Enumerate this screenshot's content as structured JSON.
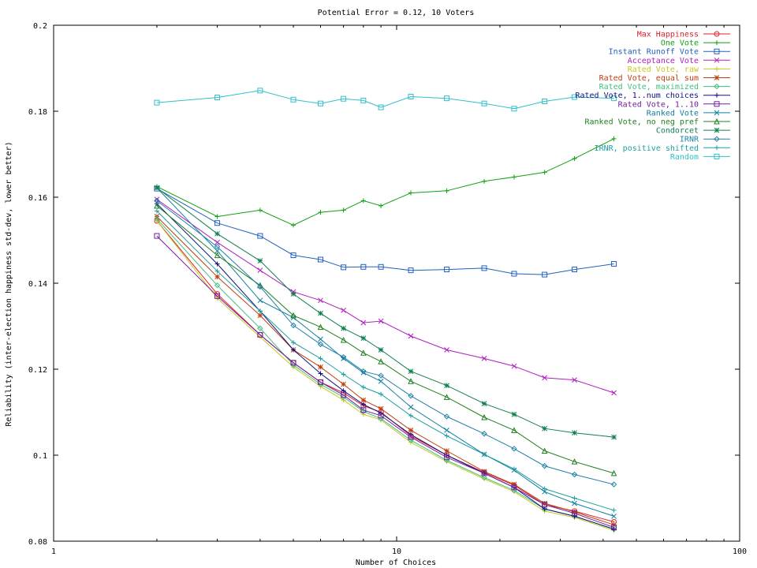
{
  "chart_data": {
    "type": "line",
    "title": "Potential Error = 0.12, 10 Voters",
    "xlabel": "Number of Choices",
    "ylabel": "Reliability (inter-election happiness std-dev, lower better)",
    "xscale": "log",
    "xlim": [
      1,
      100
    ],
    "ylim": [
      0.08,
      0.2
    ],
    "xticks": [
      {
        "value": 1,
        "label": "1"
      },
      {
        "value": 10,
        "label": "10"
      },
      {
        "value": 100,
        "label": "100"
      }
    ],
    "yticks": [
      {
        "value": 0.08,
        "label": "0.08"
      },
      {
        "value": 0.1,
        "label": "0.1"
      },
      {
        "value": 0.12,
        "label": "0.12"
      },
      {
        "value": 0.14,
        "label": "0.14"
      },
      {
        "value": 0.16,
        "label": "0.16"
      },
      {
        "value": 0.18,
        "label": "0.18"
      },
      {
        "value": 0.2,
        "label": "0.2"
      }
    ],
    "grid": false,
    "legend": "top-right",
    "x": [
      2,
      3,
      4,
      5,
      6,
      7,
      8,
      9,
      11,
      14,
      18,
      22,
      27,
      33,
      43
    ],
    "series": [
      {
        "name": "Max Happiness",
        "color": "#e0202a",
        "marker": "circle-dot",
        "values": [
          0.1545,
          0.1375,
          0.128,
          0.1215,
          0.117,
          0.1145,
          0.1115,
          0.11,
          0.1045,
          0.1,
          0.096,
          0.093,
          0.0885,
          0.087,
          0.0845
        ]
      },
      {
        "name": "One Vote",
        "color": "#12a012",
        "marker": "plus",
        "values": [
          0.1625,
          0.1555,
          0.157,
          0.1535,
          0.1565,
          0.157,
          0.1592,
          0.158,
          0.161,
          0.1615,
          0.1637,
          0.1647,
          0.1658,
          0.169,
          0.1736
        ]
      },
      {
        "name": "Instant Runoff Vote",
        "color": "#2060c0",
        "marker": "square",
        "values": [
          0.162,
          0.154,
          0.151,
          0.1465,
          0.1455,
          0.1437,
          0.1438,
          0.1438,
          0.143,
          0.1432,
          0.1435,
          0.1422,
          0.142,
          0.1432,
          0.1445
        ]
      },
      {
        "name": "Acceptance Vote",
        "color": "#b020c0",
        "marker": "x",
        "values": [
          0.1595,
          0.1495,
          0.143,
          0.138,
          0.136,
          0.1337,
          0.1308,
          0.1312,
          0.1277,
          0.1245,
          0.1225,
          0.1207,
          0.118,
          0.1175,
          0.1145
        ]
      },
      {
        "name": "Rated Vote, raw",
        "color": "#c8c820",
        "marker": "plus",
        "values": [
          0.1545,
          0.1365,
          0.1275,
          0.1205,
          0.116,
          0.1128,
          0.1095,
          0.1082,
          0.103,
          0.0985,
          0.0945,
          0.0915,
          0.087,
          0.0855,
          0.0825
        ]
      },
      {
        "name": "Rated Vote, equal sum",
        "color": "#c04010",
        "marker": "star",
        "values": [
          0.1555,
          0.1415,
          0.1325,
          0.1245,
          0.1205,
          0.1165,
          0.1128,
          0.1108,
          0.1058,
          0.101,
          0.0962,
          0.0932,
          0.0888,
          0.0868,
          0.0838
        ]
      },
      {
        "name": "Rated Vote, maximized",
        "color": "#40c080",
        "marker": "diamond",
        "values": [
          0.155,
          0.1395,
          0.1295,
          0.121,
          0.1165,
          0.1135,
          0.1102,
          0.1085,
          0.1035,
          0.0988,
          0.0948,
          0.0918,
          0.0875,
          0.0858,
          0.0828
        ]
      },
      {
        "name": "Rated Vote, 1..num choices",
        "color": "#101080",
        "marker": "plus",
        "values": [
          0.1585,
          0.1445,
          0.1335,
          0.1245,
          0.119,
          0.115,
          0.1118,
          0.1098,
          0.1048,
          0.1,
          0.0958,
          0.0925,
          0.0875,
          0.0858,
          0.0828
        ]
      },
      {
        "name": "Rated Vote, 1..10",
        "color": "#7020a0",
        "marker": "square",
        "values": [
          0.151,
          0.137,
          0.128,
          0.1215,
          0.117,
          0.114,
          0.1105,
          0.1092,
          0.1042,
          0.0995,
          0.0958,
          0.0925,
          0.0885,
          0.0865,
          0.0832
        ]
      },
      {
        "name": "Ranked Vote",
        "color": "#1080a0",
        "marker": "x",
        "values": [
          0.1622,
          0.1475,
          0.136,
          0.132,
          0.127,
          0.1225,
          0.1192,
          0.1172,
          0.1112,
          0.1058,
          0.1002,
          0.0965,
          0.0915,
          0.0888,
          0.0858
        ]
      },
      {
        "name": "Ranked Vote, no neg pref",
        "color": "#208020",
        "marker": "triangle",
        "values": [
          0.158,
          0.1465,
          0.1395,
          0.1325,
          0.1298,
          0.1268,
          0.1238,
          0.1218,
          0.1172,
          0.1135,
          0.1088,
          0.1058,
          0.101,
          0.0985,
          0.0958
        ]
      },
      {
        "name": "Condorcet",
        "color": "#108050",
        "marker": "star",
        "values": [
          0.1622,
          0.1515,
          0.1452,
          0.1375,
          0.133,
          0.1295,
          0.1272,
          0.1245,
          0.1195,
          0.1162,
          0.112,
          0.1095,
          0.1062,
          0.1052,
          0.1042
        ]
      },
      {
        "name": "IRNR",
        "color": "#2080a8",
        "marker": "diamond",
        "values": [
          0.1592,
          0.1485,
          0.1392,
          0.1302,
          0.1258,
          0.1228,
          0.1195,
          0.1185,
          0.1138,
          0.109,
          0.105,
          0.1015,
          0.0975,
          0.0955,
          0.0932
        ]
      },
      {
        "name": "IRNR, positive shifted",
        "color": "#20a0a0",
        "marker": "plus",
        "values": [
          0.1568,
          0.1428,
          0.1335,
          0.1262,
          0.1225,
          0.1188,
          0.1158,
          0.1142,
          0.1092,
          0.1045,
          0.1002,
          0.0968,
          0.0922,
          0.09,
          0.0872
        ]
      },
      {
        "name": "Random",
        "color": "#30c0c8",
        "marker": "square",
        "values": [
          0.182,
          0.1832,
          0.1848,
          0.1827,
          0.1818,
          0.1829,
          0.1825,
          0.1809,
          0.1834,
          0.183,
          0.1818,
          0.1806,
          0.1823,
          0.1833,
          0.183
        ]
      }
    ]
  }
}
